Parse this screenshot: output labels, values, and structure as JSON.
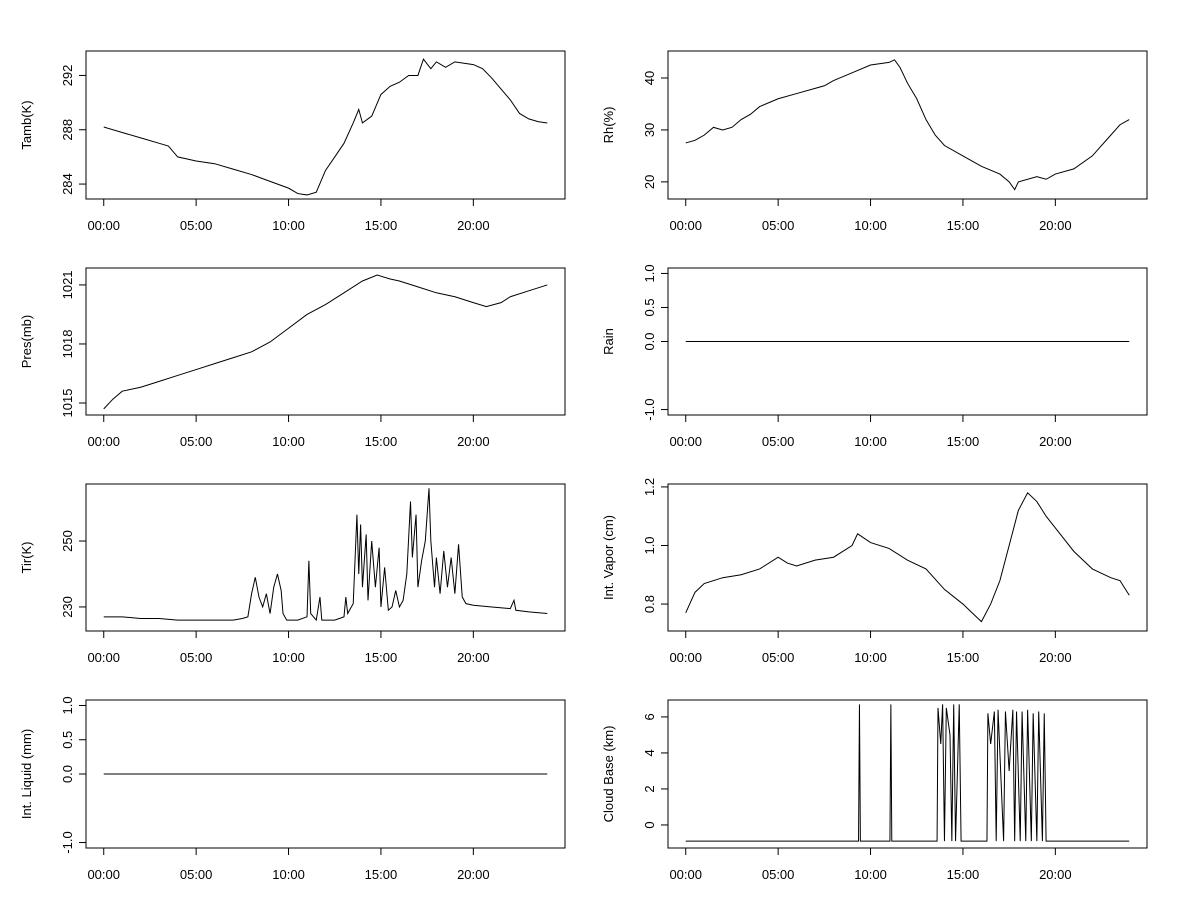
{
  "chart_data": [
    {
      "type": "line",
      "ylabel": "Tamb(K)",
      "color": "#000000",
      "x": [
        0,
        1,
        2,
        3,
        3.5,
        4,
        5,
        6,
        7,
        8,
        9,
        10,
        10.5,
        11,
        11.5,
        12,
        12.5,
        13,
        13.5,
        13.8,
        14,
        14.5,
        15,
        15.5,
        16,
        16.5,
        17,
        17.3,
        17.7,
        18,
        18.5,
        19,
        19.5,
        20,
        20.5,
        21,
        21.5,
        22,
        22.5,
        23,
        23.5,
        24
      ],
      "values": [
        288.2,
        287.8,
        287.4,
        287.0,
        286.8,
        286.0,
        285.7,
        285.5,
        285.1,
        284.7,
        284.2,
        283.7,
        283.3,
        283.2,
        283.4,
        285.0,
        286.0,
        287.0,
        288.5,
        289.5,
        288.5,
        289.0,
        290.6,
        291.2,
        291.5,
        292.0,
        292.0,
        293.2,
        292.5,
        293.0,
        292.6,
        293.0,
        292.9,
        292.8,
        292.5,
        291.8,
        291.0,
        290.2,
        289.2,
        288.8,
        288.6,
        288.5
      ],
      "xlim": [
        -0.96,
        24.96
      ],
      "ylim": [
        282.9,
        293.8
      ],
      "xticks": [
        {
          "value": 0,
          "label": "00:00"
        },
        {
          "value": 5,
          "label": "05:00"
        },
        {
          "value": 10,
          "label": "10:00"
        },
        {
          "value": 15,
          "label": "15:00"
        },
        {
          "value": 20,
          "label": "20:00"
        }
      ],
      "yticks": [
        284,
        288,
        292
      ]
    },
    {
      "type": "line",
      "ylabel": "Rh(%)",
      "color": "#000000",
      "x": [
        0,
        0.5,
        1,
        1.5,
        2,
        2.5,
        3,
        3.5,
        4,
        5,
        6,
        7,
        7.5,
        8,
        9,
        10,
        11,
        11.3,
        11.6,
        12,
        12.5,
        13,
        13.5,
        14,
        15,
        16,
        17,
        17.5,
        17.8,
        18,
        19,
        19.5,
        20,
        21,
        22,
        23,
        23.5,
        24
      ],
      "values": [
        27.5,
        28,
        29,
        30.5,
        30,
        30.5,
        32,
        33,
        34.5,
        36,
        37,
        38,
        38.5,
        39.5,
        41,
        42.5,
        43,
        43.5,
        42,
        39,
        36,
        32,
        29,
        27,
        25,
        23,
        21.5,
        20,
        18.5,
        20,
        21,
        20.5,
        21.5,
        22.5,
        25,
        29,
        31,
        32
      ],
      "xlim": [
        -0.96,
        24.96
      ],
      "ylim": [
        16.7,
        45.2
      ],
      "xticks": [
        {
          "value": 0,
          "label": "00:00"
        },
        {
          "value": 5,
          "label": "05:00"
        },
        {
          "value": 10,
          "label": "10:00"
        },
        {
          "value": 15,
          "label": "15:00"
        },
        {
          "value": 20,
          "label": "20:00"
        }
      ],
      "yticks": [
        20,
        30,
        40
      ]
    },
    {
      "type": "line",
      "ylabel": "Pres(mb)",
      "color": "#000000",
      "x": [
        0,
        0.5,
        1,
        2,
        3,
        4,
        5,
        6,
        7,
        8,
        9,
        10,
        11,
        12,
        13,
        14,
        14.8,
        15.5,
        16,
        17,
        18,
        19,
        20,
        20.7,
        21.5,
        22,
        23,
        24
      ],
      "values": [
        1014.7,
        1015.2,
        1015.6,
        1015.8,
        1016.1,
        1016.4,
        1016.7,
        1017.0,
        1017.3,
        1017.6,
        1018.1,
        1018.8,
        1019.5,
        1020.0,
        1020.6,
        1021.2,
        1021.5,
        1021.3,
        1021.2,
        1020.9,
        1020.6,
        1020.4,
        1020.1,
        1019.9,
        1020.1,
        1020.4,
        1020.7,
        1021.0
      ],
      "xlim": [
        -0.96,
        24.96
      ],
      "ylim": [
        1014.39,
        1021.86
      ],
      "xticks": [
        {
          "value": 0,
          "label": "00:00"
        },
        {
          "value": 5,
          "label": "05:00"
        },
        {
          "value": 10,
          "label": "10:00"
        },
        {
          "value": 15,
          "label": "15:00"
        },
        {
          "value": 20,
          "label": "20:00"
        }
      ],
      "yticks": [
        1015,
        1018,
        1021
      ]
    },
    {
      "type": "line",
      "ylabel": "Rain",
      "color": "#000000",
      "x": [
        0,
        24
      ],
      "values": [
        0,
        0
      ],
      "xlim": [
        -0.96,
        24.96
      ],
      "ylim": [
        -1.08,
        1.08
      ],
      "xticks": [
        {
          "value": 0,
          "label": "00:00"
        },
        {
          "value": 5,
          "label": "05:00"
        },
        {
          "value": 10,
          "label": "10:00"
        },
        {
          "value": 15,
          "label": "15:00"
        },
        {
          "value": 20,
          "label": "20:00"
        }
      ],
      "yticks": [
        {
          "value": -1,
          "label": "-1.0"
        },
        {
          "value": 0,
          "label": "0.0"
        },
        0.5,
        {
          "value": 1,
          "label": "1.0"
        }
      ]
    },
    {
      "type": "line",
      "ylabel": "Tir(K)",
      "color": "#000000",
      "x": [
        0,
        1,
        2,
        3,
        4,
        5,
        6,
        7,
        7.5,
        7.8,
        8.0,
        8.2,
        8.4,
        8.6,
        8.8,
        9.0,
        9.2,
        9.4,
        9.6,
        9.7,
        9.9,
        10.5,
        11.0,
        11.1,
        11.2,
        11.5,
        11.7,
        11.8,
        12.5,
        13.0,
        13.1,
        13.2,
        13.5,
        13.7,
        13.8,
        13.9,
        14.0,
        14.2,
        14.3,
        14.5,
        14.7,
        14.9,
        15.0,
        15.2,
        15.4,
        15.6,
        15.8,
        16.0,
        16.2,
        16.4,
        16.6,
        16.7,
        16.9,
        17.0,
        17.2,
        17.4,
        17.6,
        17.7,
        17.9,
        18.0,
        18.2,
        18.4,
        18.6,
        18.8,
        19.0,
        19.2,
        19.4,
        19.6,
        20,
        21,
        22,
        22.2,
        22.3,
        23,
        24
      ],
      "values": [
        227,
        227,
        226.5,
        226.5,
        226,
        226,
        226,
        226,
        226.5,
        227,
        234,
        239,
        233,
        230,
        234,
        228,
        236,
        240,
        235,
        228,
        226,
        226,
        227,
        244,
        228,
        226,
        233,
        226,
        226,
        227,
        233,
        228,
        231,
        258,
        240,
        255,
        236,
        252,
        232,
        250,
        236,
        248,
        230,
        242,
        229,
        230,
        235,
        230,
        232,
        240,
        262,
        245,
        258,
        236,
        244,
        250,
        266,
        250,
        236,
        245,
        234,
        247,
        236,
        245,
        234,
        249,
        233,
        231,
        230.5,
        230,
        229.5,
        232,
        229,
        228.5,
        228
      ],
      "xlim": [
        -0.96,
        24.96
      ],
      "ylim": [
        222.7,
        267.3
      ],
      "xticks": [
        {
          "value": 0,
          "label": "00:00"
        },
        {
          "value": 5,
          "label": "05:00"
        },
        {
          "value": 10,
          "label": "10:00"
        },
        {
          "value": 15,
          "label": "15:00"
        },
        {
          "value": 20,
          "label": "20:00"
        }
      ],
      "yticks": [
        230,
        250
      ]
    },
    {
      "type": "line",
      "ylabel": "Int. Vapor (cm)",
      "color": "#000000",
      "x": [
        0,
        0.5,
        1,
        2,
        3,
        4,
        5,
        5.5,
        6,
        7,
        8,
        9,
        9.3,
        10,
        11,
        12,
        13,
        14,
        15,
        15.5,
        16,
        16.5,
        17,
        17.5,
        18,
        18.5,
        19,
        19.5,
        20,
        21,
        22,
        23,
        23.5,
        24
      ],
      "values": [
        0.77,
        0.84,
        0.87,
        0.89,
        0.9,
        0.92,
        0.96,
        0.94,
        0.93,
        0.95,
        0.96,
        1.0,
        1.04,
        1.01,
        0.99,
        0.95,
        0.92,
        0.85,
        0.8,
        0.77,
        0.74,
        0.8,
        0.88,
        1.0,
        1.12,
        1.18,
        1.15,
        1.1,
        1.06,
        0.98,
        0.92,
        0.89,
        0.88,
        0.83
      ],
      "xlim": [
        -0.96,
        24.96
      ],
      "ylim": [
        0.708,
        1.21
      ],
      "xticks": [
        {
          "value": 0,
          "label": "00:00"
        },
        {
          "value": 5,
          "label": "05:00"
        },
        {
          "value": 10,
          "label": "10:00"
        },
        {
          "value": 15,
          "label": "15:00"
        },
        {
          "value": 20,
          "label": "20:00"
        }
      ],
      "yticks": [
        0.8,
        {
          "value": 1,
          "label": "1.0"
        },
        1.2
      ]
    },
    {
      "type": "line",
      "ylabel": "Int. Liquid (mm)",
      "color": "#000000",
      "x": [
        0,
        24
      ],
      "values": [
        0,
        0
      ],
      "xlim": [
        -0.96,
        24.96
      ],
      "ylim": [
        -1.08,
        1.08
      ],
      "xticks": [
        {
          "value": 0,
          "label": "00:00"
        },
        {
          "value": 5,
          "label": "05:00"
        },
        {
          "value": 10,
          "label": "10:00"
        },
        {
          "value": 15,
          "label": "15:00"
        },
        {
          "value": 20,
          "label": "20:00"
        }
      ],
      "yticks": [
        {
          "value": -1,
          "label": "-1.0"
        },
        {
          "value": 0,
          "label": "0.0"
        },
        0.5,
        {
          "value": 1,
          "label": "1.0"
        }
      ]
    },
    {
      "type": "line",
      "ylabel": "Cloud Base (km)",
      "color": "#000000",
      "x": [
        0,
        9.35,
        9.4,
        9.45,
        11.05,
        11.1,
        11.15,
        13.6,
        13.65,
        13.8,
        13.9,
        14.0,
        14.1,
        14.3,
        14.4,
        14.5,
        14.6,
        14.8,
        14.9,
        16.3,
        16.35,
        16.5,
        16.7,
        16.8,
        16.9,
        17.2,
        17.3,
        17.5,
        17.7,
        17.8,
        17.9,
        18.1,
        18.2,
        18.4,
        18.5,
        18.7,
        18.8,
        19.0,
        19.1,
        19.3,
        19.4,
        19.5,
        24
      ],
      "values": [
        -0.9,
        -0.9,
        6.7,
        -0.9,
        -0.9,
        6.7,
        -0.9,
        -0.9,
        6.5,
        4.5,
        6.7,
        -0.9,
        6.5,
        5,
        -0.9,
        6.7,
        -0.9,
        6.7,
        -0.9,
        -0.9,
        6.2,
        4.5,
        6.3,
        -0.9,
        6.4,
        -0.9,
        6.3,
        3,
        6.4,
        -0.9,
        6.3,
        -0.9,
        6.3,
        -0.9,
        6.4,
        -0.9,
        6.2,
        -0.9,
        6.3,
        -0.9,
        6.2,
        -0.9,
        -0.9
      ],
      "xlim": [
        -0.96,
        24.96
      ],
      "ylim": [
        -1.28,
        6.94
      ],
      "xticks": [
        {
          "value": 0,
          "label": "00:00"
        },
        {
          "value": 5,
          "label": "05:00"
        },
        {
          "value": 10,
          "label": "10:00"
        },
        {
          "value": 15,
          "label": "15:00"
        },
        {
          "value": 20,
          "label": "20:00"
        }
      ],
      "yticks": [
        0,
        2,
        4,
        6
      ]
    }
  ]
}
